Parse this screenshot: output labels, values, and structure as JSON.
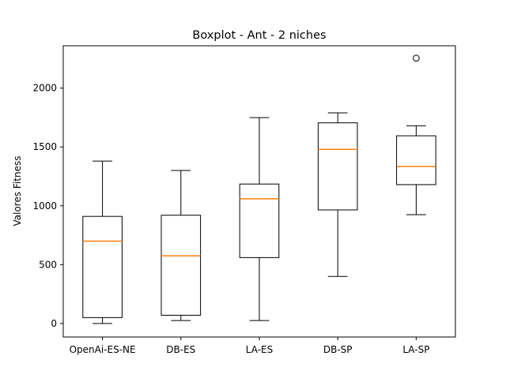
{
  "chart_data": {
    "type": "boxplot",
    "title": "Boxplot - Ant - 2 niches",
    "xlabel": "",
    "ylabel": "Valores Fitness",
    "ylim": [
      -115,
      2360
    ],
    "yticks": [
      0,
      500,
      1000,
      1500,
      2000
    ],
    "grid": false,
    "categories": [
      "OpenAi-ES-NE",
      "DB-ES",
      "LA-ES",
      "DB-SP",
      "LA-SP"
    ],
    "boxes": [
      {
        "category": "OpenAi-ES-NE",
        "whisker_low": 0,
        "q1": 50,
        "median": 700,
        "q3": 910,
        "whisker_high": 1380,
        "outliers": []
      },
      {
        "category": "DB-ES",
        "whisker_low": 25,
        "q1": 70,
        "median": 575,
        "q3": 920,
        "whisker_high": 1300,
        "outliers": []
      },
      {
        "category": "LA-ES",
        "whisker_low": 25,
        "q1": 560,
        "median": 1060,
        "q3": 1185,
        "whisker_high": 1750,
        "outliers": []
      },
      {
        "category": "DB-SP",
        "whisker_low": 400,
        "q1": 965,
        "median": 1480,
        "q3": 1705,
        "whisker_high": 1790,
        "outliers": []
      },
      {
        "category": "LA-SP",
        "whisker_low": 925,
        "q1": 1180,
        "median": 1335,
        "q3": 1595,
        "whisker_high": 1680,
        "outliers": [
          2255
        ]
      }
    ],
    "colors": {
      "box": "#000000",
      "median": "#ff7f0e",
      "outlier": "#000000"
    }
  }
}
